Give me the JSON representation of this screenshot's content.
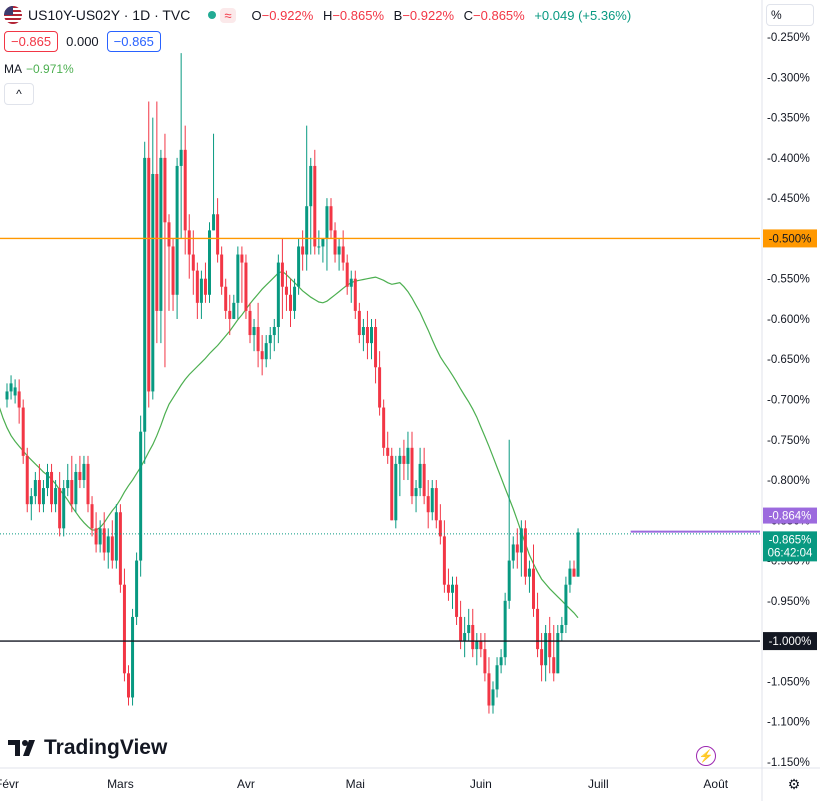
{
  "header": {
    "symbol": "US10Y-US02Y · 1D · TVC",
    "wave_icon": "≈",
    "ohlc": {
      "o_label": "O",
      "o_value": "−0.922%",
      "h_label": "H",
      "h_value": "−0.865%",
      "b_label": "B",
      "b_value": "−0.922%",
      "c_label": "C",
      "c_value": "−0.865%",
      "change": "+0.049 (+5.36%)"
    },
    "sell_price": "−0.865",
    "spread": "0.000",
    "buy_price": "−0.865",
    "ma_label": "MA",
    "ma_value": "−0.971%",
    "unit_button": "%",
    "collapse_icon": "^"
  },
  "branding": {
    "logo_text": "TradingView"
  },
  "colors": {
    "up": "#089981",
    "down": "#f23645",
    "ma": "#4caf50",
    "orange_line": "#ff9800",
    "black_line": "#131722",
    "purple": "#9c6ade"
  },
  "chart_data": {
    "type": "candlestick",
    "y_axis_unit": "%",
    "ylim": [
      -1.17,
      -0.235
    ],
    "y_ticks": [
      -0.25,
      -0.3,
      -0.35,
      -0.4,
      -0.45,
      -0.5,
      -0.55,
      -0.6,
      -0.65,
      -0.7,
      -0.75,
      -0.8,
      -0.85,
      -0.9,
      -0.95,
      -1.0,
      -1.05,
      -1.1,
      -1.15
    ],
    "y_tick_labels": [
      "-0.250%",
      "-0.300%",
      "-0.350%",
      "-0.400%",
      "-0.450%",
      "-0.500%",
      "-0.550%",
      "-0.600%",
      "-0.650%",
      "-0.700%",
      "-0.750%",
      "-0.800%",
      "-0.850%",
      "-0.900%",
      "-0.950%",
      "-1.000%",
      "-1.050%",
      "-1.100%",
      "-1.150%"
    ],
    "x_tick_labels": [
      {
        "label": "Févr",
        "index": 0
      },
      {
        "label": "Mars",
        "index": 28
      },
      {
        "label": "Avr",
        "index": 59
      },
      {
        "label": "Mai",
        "index": 86
      },
      {
        "label": "Juin",
        "index": 117
      },
      {
        "label": "Juill",
        "index": 146
      },
      {
        "label": "Août",
        "index": 175
      }
    ],
    "horizontal_lines": [
      {
        "value": -0.5,
        "label": "-0.500%",
        "color": "#ff9800"
      },
      {
        "value": -1.0,
        "label": "-1.000%",
        "color": "#131722"
      }
    ],
    "price_labels": [
      {
        "value": -0.864,
        "label": "-0.864%",
        "color": "#9c6ade"
      },
      {
        "value": -0.865,
        "label": "-0.865%",
        "sublabel": "06:42:04",
        "color": "#089981"
      }
    ],
    "purple_segment": {
      "start_index": 154,
      "value": -0.864
    },
    "ma_period": 20,
    "ma": [
      -0.655,
      -0.663,
      -0.676,
      -0.692,
      -0.708,
      -0.723,
      -0.735,
      -0.745,
      -0.752,
      -0.758,
      -0.764,
      -0.77,
      -0.775,
      -0.78,
      -0.785,
      -0.79,
      -0.794,
      -0.799,
      -0.805,
      -0.812,
      -0.818,
      -0.825,
      -0.833,
      -0.84,
      -0.847,
      -0.853,
      -0.858,
      -0.862,
      -0.862,
      -0.859,
      -0.853,
      -0.845,
      -0.838,
      -0.832,
      -0.824,
      -0.815,
      -0.807,
      -0.8,
      -0.792,
      -0.784,
      -0.775,
      -0.765,
      -0.756,
      -0.745,
      -0.732,
      -0.718,
      -0.706,
      -0.698,
      -0.69,
      -0.682,
      -0.675,
      -0.669,
      -0.664,
      -0.659,
      -0.654,
      -0.649,
      -0.643,
      -0.638,
      -0.633,
      -0.627,
      -0.621,
      -0.615,
      -0.608,
      -0.601,
      -0.595,
      -0.588,
      -0.581,
      -0.575,
      -0.569,
      -0.563,
      -0.558,
      -0.553,
      -0.548,
      -0.543,
      -0.541,
      -0.545,
      -0.55,
      -0.555,
      -0.56,
      -0.565,
      -0.569,
      -0.573,
      -0.576,
      -0.579,
      -0.58,
      -0.578,
      -0.574,
      -0.57,
      -0.566,
      -0.562,
      -0.558,
      -0.555,
      -0.553,
      -0.552,
      -0.551,
      -0.55,
      -0.549,
      -0.548,
      -0.55,
      -0.552,
      -0.555,
      -0.557,
      -0.556,
      -0.555,
      -0.56,
      -0.566,
      -0.574,
      -0.583,
      -0.592,
      -0.603,
      -0.614,
      -0.626,
      -0.637,
      -0.647,
      -0.655,
      -0.662,
      -0.67,
      -0.678,
      -0.687,
      -0.695,
      -0.703,
      -0.712,
      -0.722,
      -0.734,
      -0.746,
      -0.758,
      -0.771,
      -0.784,
      -0.797,
      -0.81,
      -0.823,
      -0.836,
      -0.85,
      -0.865,
      -0.879,
      -0.893,
      -0.904,
      -0.914,
      -0.923,
      -0.929,
      -0.935,
      -0.94,
      -0.945,
      -0.95,
      -0.955,
      -0.96,
      -0.965,
      -0.971
    ],
    "candles": [
      [
        -0.7,
        -0.68,
        -0.71,
        -0.69
      ],
      [
        -0.69,
        -0.67,
        -0.7,
        -0.68
      ],
      [
        -0.695,
        -0.675,
        -0.705,
        -0.685
      ],
      [
        -0.69,
        -0.675,
        -0.73,
        -0.71
      ],
      [
        -0.71,
        -0.7,
        -0.78,
        -0.77
      ],
      [
        -0.77,
        -0.76,
        -0.84,
        -0.83
      ],
      [
        -0.83,
        -0.81,
        -0.85,
        -0.82
      ],
      [
        -0.82,
        -0.79,
        -0.83,
        -0.8
      ],
      [
        -0.8,
        -0.78,
        -0.84,
        -0.83
      ],
      [
        -0.83,
        -0.8,
        -0.84,
        -0.81
      ],
      [
        -0.81,
        -0.78,
        -0.82,
        -0.79
      ],
      [
        -0.79,
        -0.78,
        -0.84,
        -0.83
      ],
      [
        -0.83,
        -0.8,
        -0.84,
        -0.81
      ],
      [
        -0.81,
        -0.79,
        -0.87,
        -0.86
      ],
      [
        -0.86,
        -0.8,
        -0.87,
        -0.81
      ],
      [
        -0.81,
        -0.78,
        -0.82,
        -0.8
      ],
      [
        -0.8,
        -0.77,
        -0.84,
        -0.83
      ],
      [
        -0.83,
        -0.78,
        -0.84,
        -0.79
      ],
      [
        -0.79,
        -0.77,
        -0.81,
        -0.8
      ],
      [
        -0.8,
        -0.77,
        -0.81,
        -0.78
      ],
      [
        -0.78,
        -0.77,
        -0.84,
        -0.83
      ],
      [
        -0.83,
        -0.82,
        -0.87,
        -0.86
      ],
      [
        -0.86,
        -0.84,
        -0.89,
        -0.88
      ],
      [
        -0.88,
        -0.85,
        -0.89,
        -0.86
      ],
      [
        -0.86,
        -0.84,
        -0.9,
        -0.89
      ],
      [
        -0.89,
        -0.86,
        -0.91,
        -0.87
      ],
      [
        -0.87,
        -0.85,
        -0.91,
        -0.9
      ],
      [
        -0.9,
        -0.83,
        -0.91,
        -0.84
      ],
      [
        -0.84,
        -0.83,
        -0.94,
        -0.93
      ],
      [
        -0.93,
        -0.91,
        -1.05,
        -1.04
      ],
      [
        -1.04,
        -1.03,
        -1.08,
        -1.07
      ],
      [
        -1.07,
        -0.96,
        -1.08,
        -0.97
      ],
      [
        -0.97,
        -0.89,
        -0.98,
        -0.9
      ],
      [
        -0.9,
        -0.72,
        -0.92,
        -0.74
      ],
      [
        -0.74,
        -0.38,
        -0.78,
        -0.4
      ],
      [
        -0.4,
        -0.33,
        -0.71,
        -0.69
      ],
      [
        -0.69,
        -0.35,
        -0.7,
        -0.42
      ],
      [
        -0.42,
        -0.33,
        -0.63,
        -0.59
      ],
      [
        -0.59,
        -0.39,
        -0.63,
        -0.4
      ],
      [
        -0.4,
        -0.37,
        -0.66,
        -0.48
      ],
      [
        -0.48,
        -0.47,
        -0.59,
        -0.51
      ],
      [
        -0.51,
        -0.5,
        -0.59,
        -0.57
      ],
      [
        -0.57,
        -0.4,
        -0.6,
        -0.41
      ],
      [
        -0.41,
        -0.27,
        -0.5,
        -0.39
      ],
      [
        -0.39,
        -0.36,
        -0.52,
        -0.49
      ],
      [
        -0.49,
        -0.47,
        -0.55,
        -0.52
      ],
      [
        -0.52,
        -0.49,
        -0.57,
        -0.54
      ],
      [
        -0.54,
        -0.53,
        -0.6,
        -0.58
      ],
      [
        -0.58,
        -0.54,
        -0.6,
        -0.55
      ],
      [
        -0.55,
        -0.53,
        -0.58,
        -0.57
      ],
      [
        -0.57,
        -0.48,
        -0.58,
        -0.49
      ],
      [
        -0.49,
        -0.37,
        -0.49,
        -0.47
      ],
      [
        -0.47,
        -0.45,
        -0.53,
        -0.52
      ],
      [
        -0.52,
        -0.51,
        -0.57,
        -0.56
      ],
      [
        -0.56,
        -0.55,
        -0.6,
        -0.59
      ],
      [
        -0.59,
        -0.57,
        -0.62,
        -0.6
      ],
      [
        -0.6,
        -0.57,
        -0.6,
        -0.58
      ],
      [
        -0.58,
        -0.51,
        -0.6,
        -0.52
      ],
      [
        -0.52,
        -0.51,
        -0.58,
        -0.53
      ],
      [
        -0.53,
        -0.52,
        -0.6,
        -0.59
      ],
      [
        -0.59,
        -0.58,
        -0.63,
        -0.62
      ],
      [
        -0.62,
        -0.6,
        -0.64,
        -0.61
      ],
      [
        -0.61,
        -0.58,
        -0.66,
        -0.64
      ],
      [
        -0.64,
        -0.62,
        -0.67,
        -0.65
      ],
      [
        -0.65,
        -0.62,
        -0.66,
        -0.63
      ],
      [
        -0.63,
        -0.61,
        -0.65,
        -0.62
      ],
      [
        -0.62,
        -0.6,
        -0.64,
        -0.61
      ],
      [
        -0.61,
        -0.52,
        -0.63,
        -0.53
      ],
      [
        -0.53,
        -0.5,
        -0.6,
        -0.56
      ],
      [
        -0.56,
        -0.54,
        -0.59,
        -0.57
      ],
      [
        -0.57,
        -0.55,
        -0.61,
        -0.59
      ],
      [
        -0.59,
        -0.55,
        -0.6,
        -0.56
      ],
      [
        -0.56,
        -0.5,
        -0.57,
        -0.51
      ],
      [
        -0.51,
        -0.49,
        -0.54,
        -0.52
      ],
      [
        -0.52,
        -0.36,
        -0.54,
        -0.46
      ],
      [
        -0.46,
        -0.4,
        -0.52,
        -0.41
      ],
      [
        -0.41,
        -0.39,
        -0.52,
        -0.51
      ],
      [
        -0.51,
        -0.49,
        -0.52,
        -0.51
      ],
      [
        -0.51,
        -0.5,
        -0.53,
        -0.5
      ],
      [
        -0.5,
        -0.45,
        -0.54,
        -0.46
      ],
      [
        -0.46,
        -0.45,
        -0.5,
        -0.49
      ],
      [
        -0.49,
        -0.48,
        -0.53,
        -0.52
      ],
      [
        -0.52,
        -0.5,
        -0.54,
        -0.51
      ],
      [
        -0.51,
        -0.49,
        -0.54,
        -0.53
      ],
      [
        -0.53,
        -0.52,
        -0.57,
        -0.56
      ],
      [
        -0.56,
        -0.54,
        -0.58,
        -0.55
      ],
      [
        -0.55,
        -0.54,
        -0.6,
        -0.59
      ],
      [
        -0.59,
        -0.58,
        -0.63,
        -0.62
      ],
      [
        -0.62,
        -0.6,
        -0.64,
        -0.61
      ],
      [
        -0.61,
        -0.59,
        -0.65,
        -0.63
      ],
      [
        -0.63,
        -0.6,
        -0.65,
        -0.61
      ],
      [
        -0.61,
        -0.6,
        -0.68,
        -0.66
      ],
      [
        -0.66,
        -0.64,
        -0.72,
        -0.71
      ],
      [
        -0.71,
        -0.7,
        -0.77,
        -0.76
      ],
      [
        -0.76,
        -0.74,
        -0.78,
        -0.77
      ],
      [
        -0.77,
        -0.76,
        -0.85,
        -0.85
      ],
      [
        -0.85,
        -0.77,
        -0.86,
        -0.78
      ],
      [
        -0.78,
        -0.76,
        -0.82,
        -0.77
      ],
      [
        -0.77,
        -0.75,
        -0.8,
        -0.78
      ],
      [
        -0.78,
        -0.74,
        -0.8,
        -0.76
      ],
      [
        -0.76,
        -0.74,
        -0.83,
        -0.82
      ],
      [
        -0.82,
        -0.8,
        -0.84,
        -0.81
      ],
      [
        -0.81,
        -0.76,
        -0.82,
        -0.78
      ],
      [
        -0.78,
        -0.76,
        -0.83,
        -0.82
      ],
      [
        -0.82,
        -0.8,
        -0.86,
        -0.84
      ],
      [
        -0.84,
        -0.8,
        -0.85,
        -0.81
      ],
      [
        -0.81,
        -0.8,
        -0.86,
        -0.85
      ],
      [
        -0.85,
        -0.83,
        -0.88,
        -0.87
      ],
      [
        -0.87,
        -0.85,
        -0.94,
        -0.93
      ],
      [
        -0.93,
        -0.91,
        -0.95,
        -0.94
      ],
      [
        -0.94,
        -0.92,
        -0.96,
        -0.93
      ],
      [
        -0.93,
        -0.92,
        -0.98,
        -0.97
      ],
      [
        -0.97,
        -0.95,
        -1.01,
        -1.0
      ],
      [
        -1.0,
        -0.97,
        -1.02,
        -0.99
      ],
      [
        -0.99,
        -0.96,
        -1.0,
        -0.98
      ],
      [
        -0.98,
        -0.96,
        -1.02,
        -1.01
      ],
      [
        -1.01,
        -0.99,
        -1.03,
        -1.0
      ],
      [
        -1.0,
        -0.99,
        -1.02,
        -1.01
      ],
      [
        -1.01,
        -0.99,
        -1.05,
        -1.04
      ],
      [
        -1.04,
        -1.02,
        -1.09,
        -1.08
      ],
      [
        -1.08,
        -1.05,
        -1.09,
        -1.06
      ],
      [
        -1.06,
        -1.02,
        -1.07,
        -1.03
      ],
      [
        -1.03,
        -1.01,
        -1.04,
        -1.02
      ],
      [
        -1.02,
        -0.94,
        -1.03,
        -0.95
      ],
      [
        -0.95,
        -0.75,
        -0.96,
        -0.9
      ],
      [
        -0.9,
        -0.87,
        -0.91,
        -0.88
      ],
      [
        -0.88,
        -0.86,
        -0.91,
        -0.89
      ],
      [
        -0.89,
        -0.85,
        -0.92,
        -0.86
      ],
      [
        -0.86,
        -0.85,
        -0.93,
        -0.92
      ],
      [
        -0.92,
        -0.9,
        -0.94,
        -0.91
      ],
      [
        -0.91,
        -0.88,
        -0.97,
        -0.96
      ],
      [
        -0.96,
        -0.94,
        -1.02,
        -1.01
      ],
      [
        -1.01,
        -0.99,
        -1.05,
        -1.03
      ],
      [
        -1.03,
        -0.98,
        -1.05,
        -0.99
      ],
      [
        -0.99,
        -0.97,
        -1.04,
        -1.02
      ],
      [
        -1.02,
        -0.98,
        -1.05,
        -1.04
      ],
      [
        -1.04,
        -0.98,
        -1.04,
        -0.99
      ],
      [
        -0.99,
        -0.97,
        -1.0,
        -0.98
      ],
      [
        -0.98,
        -0.92,
        -0.99,
        -0.93
      ],
      [
        -0.93,
        -0.9,
        -0.94,
        -0.91
      ],
      [
        -0.91,
        -0.9,
        -0.92,
        -0.92
      ],
      [
        -0.92,
        -0.86,
        -0.92,
        -0.865
      ]
    ]
  }
}
